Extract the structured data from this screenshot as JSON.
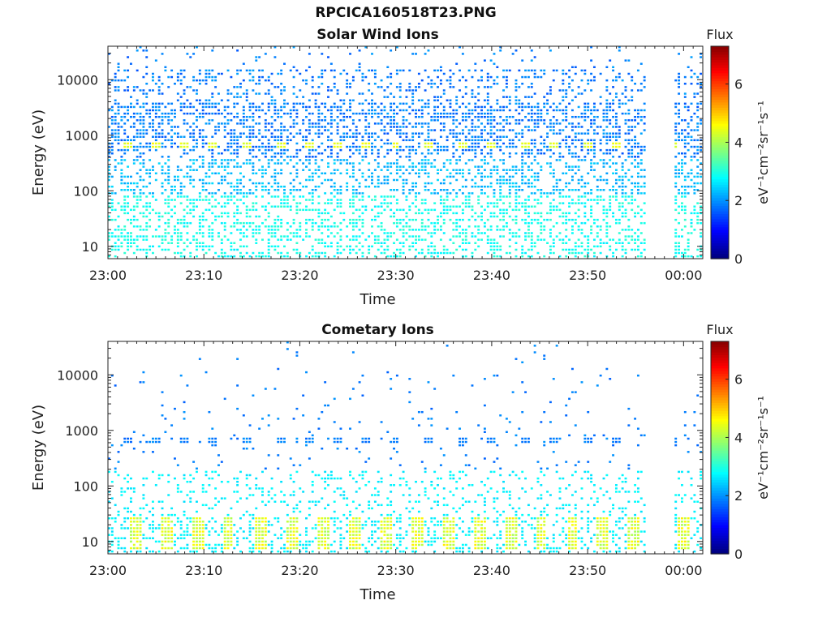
{
  "figure": {
    "title": "RPCICA160518T23.PNG"
  },
  "colorscale": {
    "stops": [
      "#00007f",
      "#0000ff",
      "#007fff",
      "#00ffff",
      "#7fff7f",
      "#ffff00",
      "#ff7f00",
      "#ff0000",
      "#7f0000"
    ]
  },
  "chart_data": [
    {
      "type": "heatmap",
      "title": "Solar Wind Ions",
      "xlabel": "Time",
      "ylabel": "Energy (eV)",
      "x_ticks": [
        "23:00",
        "23:10",
        "23:20",
        "23:30",
        "23:40",
        "23:50",
        "00:00"
      ],
      "x_range_minutes": [
        0,
        62
      ],
      "y_scale": "log",
      "y_ticks": [
        10,
        100,
        1000,
        10000
      ],
      "y_range": [
        6,
        40000
      ],
      "data_gap_minutes": [
        56,
        59
      ],
      "colorbar": {
        "label": "Flux",
        "unit": "eV⁻¹cm⁻²sr⁻¹s⁻¹",
        "range": [
          0,
          7.3
        ],
        "ticks": [
          0,
          2,
          4,
          6
        ]
      },
      "periodic_peak": {
        "energy_eV": 650,
        "flux": 4.2,
        "minutes": [
          2,
          5,
          8,
          11,
          14.5,
          18,
          21,
          24,
          27,
          30,
          33.5,
          37,
          40,
          43.5,
          46.5,
          50,
          53,
          59
        ]
      },
      "background_flux": {
        "high_energy": 1.5,
        "low_energy": 2.6
      }
    },
    {
      "type": "heatmap",
      "title": "Cometary Ions",
      "xlabel": "Time",
      "ylabel": "Energy (eV)",
      "x_ticks": [
        "23:00",
        "23:10",
        "23:20",
        "23:30",
        "23:40",
        "23:50",
        "00:00"
      ],
      "x_range_minutes": [
        0,
        62
      ],
      "y_scale": "log",
      "y_ticks": [
        10,
        100,
        1000,
        10000
      ],
      "y_range": [
        6,
        40000
      ],
      "data_gap_minutes": [
        56,
        59
      ],
      "colorbar": {
        "label": "Flux",
        "unit": "eV⁻¹cm⁻²sr⁻¹s⁻¹",
        "range": [
          0,
          7.3
        ],
        "ticks": [
          0,
          2,
          4,
          6
        ]
      },
      "periodic_peak": {
        "energy_eV": 650,
        "flux": 1.6,
        "minutes": [
          2,
          5,
          8,
          11,
          14.5,
          18,
          21,
          24,
          27,
          30,
          33.5,
          37,
          40,
          43.5,
          46.5,
          50,
          53,
          59
        ]
      },
      "low_energy_bursts": {
        "energy_range_eV": [
          7,
          28
        ],
        "flux": 4.4,
        "minutes": [
          3,
          6.3,
          9.5,
          12.6,
          16,
          19.3,
          22.5,
          25.8,
          29,
          32.2,
          35.5,
          38.8,
          42,
          45.2,
          48.5,
          51.6,
          54.8,
          60
        ]
      },
      "background_flux": {
        "high_energy": 1.6,
        "low_energy": 2.5
      }
    }
  ]
}
